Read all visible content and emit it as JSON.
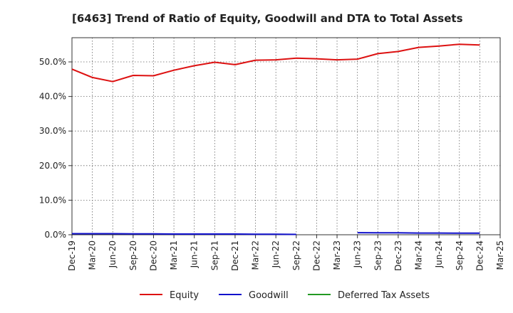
{
  "chart_data": {
    "type": "line",
    "title": "[6463]  Trend of Ratio of Equity, Goodwill and DTA to Total Assets",
    "xlabel": "",
    "ylabel": "",
    "y_tick_labels": [
      "0.0%",
      "10.0%",
      "20.0%",
      "30.0%",
      "40.0%",
      "50.0%"
    ],
    "y_ticks": [
      0,
      10,
      20,
      30,
      40,
      50
    ],
    "ylim": [
      0,
      57
    ],
    "grid": true,
    "legend_position": "bottom",
    "x": [
      "Dec-19",
      "Mar-20",
      "Jun-20",
      "Sep-20",
      "Dec-20",
      "Mar-21",
      "Jun-21",
      "Sep-21",
      "Dec-21",
      "Mar-22",
      "Jun-22",
      "Sep-22",
      "Dec-22",
      "Mar-23",
      "Jun-23",
      "Sep-23",
      "Dec-23",
      "Mar-24",
      "Jun-24",
      "Sep-24",
      "Dec-24",
      "Mar-25"
    ],
    "series": [
      {
        "name": "Equity",
        "color": "#dd1111",
        "values": [
          47.9,
          45.5,
          44.3,
          46.1,
          46.0,
          47.6,
          48.9,
          49.9,
          49.2,
          50.5,
          50.6,
          51.1,
          50.9,
          50.6,
          50.8,
          52.4,
          53.0,
          54.2,
          54.6,
          55.1,
          54.9,
          null
        ]
      },
      {
        "name": "Goodwill",
        "color": "#1111cc",
        "values": [
          0.3,
          0.3,
          0.3,
          0.25,
          0.25,
          0.2,
          0.2,
          0.2,
          0.2,
          0.15,
          0.15,
          0.1,
          null,
          null,
          0.6,
          0.55,
          0.55,
          0.5,
          0.5,
          0.45,
          0.45,
          null
        ]
      },
      {
        "name": "Deferred Tax Assets",
        "color": "#229922",
        "values": [
          null,
          null,
          null,
          null,
          null,
          null,
          null,
          null,
          null,
          null,
          null,
          null,
          null,
          null,
          null,
          null,
          null,
          null,
          null,
          null,
          null,
          null
        ]
      }
    ]
  }
}
